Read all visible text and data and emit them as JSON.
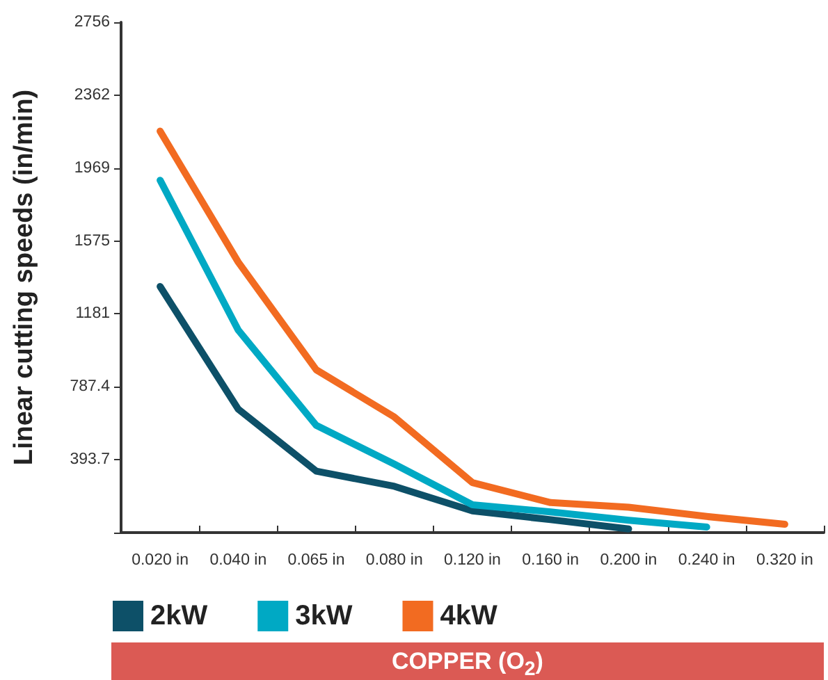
{
  "chart_data": {
    "type": "line",
    "ylabel": "Linear cutting speeds (in/min)",
    "categories": [
      "0.020 in",
      "0.040 in",
      "0.065 in",
      "0.080 in",
      "0.120 in",
      "0.160 in",
      "0.200 in",
      "0.240 in",
      "0.320 in"
    ],
    "series": [
      {
        "name": "2kW",
        "color": "#0d5068",
        "values": [
          1329,
          667,
          332,
          250,
          117,
          70,
          20,
          null,
          null
        ]
      },
      {
        "name": "3kW",
        "color": "#00a9c4",
        "values": [
          1903,
          1094,
          579,
          370,
          150,
          112,
          67,
          30,
          null
        ]
      },
      {
        "name": "4kW",
        "color": "#f26b21",
        "values": [
          2168,
          1461,
          879,
          624,
          270,
          162,
          137,
          87,
          45
        ]
      }
    ],
    "ylim": [
      0,
      2756
    ],
    "yticks": [
      {
        "value": 0,
        "label": null
      },
      393.7,
      787.4,
      1181,
      1575,
      1969,
      2362,
      2756
    ],
    "grid": false,
    "legend": "bottom left",
    "marker": "none",
    "line_style": "solid",
    "annotations": [
      "COPPER (O$_{2}$)"
    ]
  }
}
